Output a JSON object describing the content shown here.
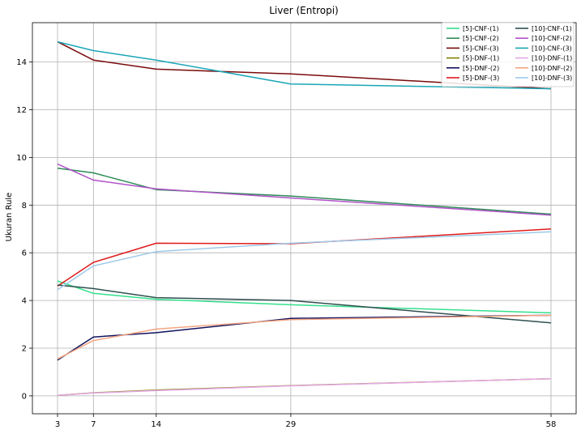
{
  "chart_data": {
    "type": "line",
    "title": "Liver (Entropi)",
    "xlabel": "",
    "ylabel": "Ukuran Rule",
    "x": [
      3,
      7,
      14,
      29,
      58
    ],
    "xticks": [
      3,
      7,
      14,
      29,
      58
    ],
    "yticks": [
      0,
      2,
      4,
      6,
      8,
      10,
      12,
      14
    ],
    "xlim": [
      0.2,
      60.8
    ],
    "ylim": [
      -0.75,
      15.65
    ],
    "grid": true,
    "legend": "top-right",
    "legend_columns": 2,
    "series": [
      {
        "name": "[5]-CNF-(1)",
        "color": "#33e08c",
        "values": [
          4.82,
          4.3,
          4.05,
          3.82,
          3.48
        ]
      },
      {
        "name": "[5]-CNF-(2)",
        "color": "#2e8b57",
        "values": [
          9.55,
          9.35,
          8.65,
          8.38,
          7.62
        ]
      },
      {
        "name": "[5]-CNF-(3)",
        "color": "#7a0a0a",
        "values": [
          14.85,
          14.08,
          13.7,
          13.5,
          12.88
        ]
      },
      {
        "name": "[5]-DNF-(1)",
        "color": "#808000",
        "values": [
          0.02,
          0.13,
          0.24,
          0.43,
          0.72
        ]
      },
      {
        "name": "[5]-DNF-(2)",
        "color": "#12125e",
        "values": [
          1.5,
          2.47,
          2.65,
          3.25,
          3.38
        ]
      },
      {
        "name": "[5]-DNF-(3)",
        "color": "#e01b1b",
        "values": [
          4.6,
          5.6,
          6.4,
          6.38,
          7.0
        ]
      },
      {
        "name": "[10]-CNF-(1)",
        "color": "#2f4f4f",
        "values": [
          4.65,
          4.5,
          4.12,
          4.0,
          3.06
        ]
      },
      {
        "name": "[10]-CNF-(2)",
        "color": "#b054c8",
        "values": [
          9.72,
          9.05,
          8.68,
          8.3,
          7.58
        ]
      },
      {
        "name": "[10]-CNF-(3)",
        "color": "#1aa6b7",
        "values": [
          14.85,
          14.48,
          14.08,
          13.08,
          12.88
        ]
      },
      {
        "name": "[10]-DNF-(1)",
        "color": "#e6a8e6",
        "values": [
          0.02,
          0.12,
          0.22,
          0.42,
          0.72
        ]
      },
      {
        "name": "[10]-DNF-(2)",
        "color": "#f4a582",
        "values": [
          1.55,
          2.32,
          2.8,
          3.2,
          3.38
        ]
      },
      {
        "name": "[10]-DNF-(3)",
        "color": "#9ecae9",
        "values": [
          4.45,
          5.45,
          6.05,
          6.4,
          6.88
        ]
      }
    ]
  }
}
